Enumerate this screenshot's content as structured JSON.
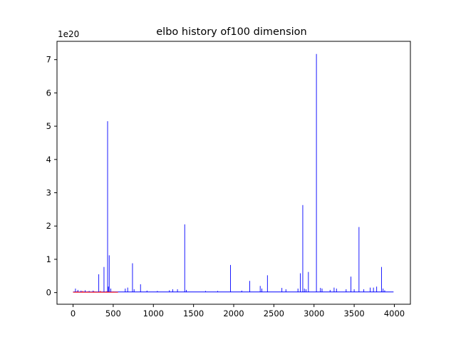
{
  "chart_data": {
    "type": "line",
    "title": "elbo history of100 dimension",
    "xlabel": "",
    "ylabel": "",
    "y_offset_label": "1e20",
    "xlim": [
      -200,
      4200
    ],
    "ylim": [
      -0.35,
      7.55
    ],
    "x_ticks": [
      0,
      500,
      1000,
      1500,
      2000,
      2500,
      3000,
      3500,
      4000
    ],
    "y_ticks": [
      0,
      1,
      2,
      3,
      4,
      5,
      6,
      7
    ],
    "grid": false,
    "legend": "none",
    "series": [
      {
        "color": "#0000ff",
        "baseline": 0.02,
        "x_range": [
          0,
          3990
        ],
        "spikes": [
          [
            30,
            0.12
          ],
          [
            60,
            0.08
          ],
          [
            100,
            0.06
          ],
          [
            150,
            0.07
          ],
          [
            200,
            0.05
          ],
          [
            250,
            0.06
          ],
          [
            320,
            0.55
          ],
          [
            385,
            0.77
          ],
          [
            430,
            5.15
          ],
          [
            440,
            0.18
          ],
          [
            450,
            1.12
          ],
          [
            470,
            0.12
          ],
          [
            650,
            0.12
          ],
          [
            680,
            0.15
          ],
          [
            740,
            0.88
          ],
          [
            760,
            0.1
          ],
          [
            840,
            0.25
          ],
          [
            920,
            0.06
          ],
          [
            1050,
            0.05
          ],
          [
            1200,
            0.07
          ],
          [
            1240,
            0.1
          ],
          [
            1300,
            0.1
          ],
          [
            1390,
            2.05
          ],
          [
            1410,
            0.08
          ],
          [
            1650,
            0.05
          ],
          [
            1800,
            0.05
          ],
          [
            1960,
            0.83
          ],
          [
            2100,
            0.06
          ],
          [
            2200,
            0.35
          ],
          [
            2330,
            0.2
          ],
          [
            2350,
            0.12
          ],
          [
            2420,
            0.52
          ],
          [
            2600,
            0.14
          ],
          [
            2650,
            0.1
          ],
          [
            2800,
            0.12
          ],
          [
            2830,
            0.58
          ],
          [
            2860,
            2.63
          ],
          [
            2880,
            0.12
          ],
          [
            2900,
            0.1
          ],
          [
            2930,
            0.62
          ],
          [
            3030,
            7.17
          ],
          [
            3080,
            0.14
          ],
          [
            3100,
            0.12
          ],
          [
            3200,
            0.08
          ],
          [
            3250,
            0.15
          ],
          [
            3280,
            0.12
          ],
          [
            3400,
            0.1
          ],
          [
            3460,
            0.48
          ],
          [
            3500,
            0.1
          ],
          [
            3560,
            1.97
          ],
          [
            3620,
            0.1
          ],
          [
            3700,
            0.15
          ],
          [
            3740,
            0.15
          ],
          [
            3780,
            0.18
          ],
          [
            3840,
            0.77
          ],
          [
            3860,
            0.12
          ],
          [
            3880,
            0.07
          ]
        ]
      },
      {
        "color": "#ff0000",
        "baseline": 0.01,
        "x_range": [
          0,
          560
        ],
        "spikes": [
          [
            50,
            0.04
          ],
          [
            120,
            0.05
          ],
          [
            180,
            0.03
          ],
          [
            260,
            0.04
          ],
          [
            340,
            0.05
          ],
          [
            420,
            0.04
          ],
          [
            500,
            0.03
          ]
        ]
      }
    ]
  }
}
